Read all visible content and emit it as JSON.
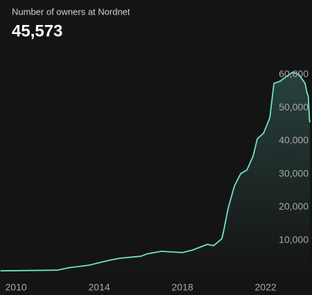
{
  "chart_data": {
    "type": "line",
    "title": "Number of owners at Nordnet",
    "subtitle": "45,573",
    "x": [
      2009.25,
      2012,
      2012.5,
      2013.5,
      2014.5,
      2015,
      2016,
      2016.3,
      2017,
      2018,
      2018.5,
      2019.2,
      2019.5,
      2019.9,
      2020.0,
      2020.2,
      2020.5,
      2020.8,
      2021.1,
      2021.4,
      2021.6,
      2021.9,
      2022.2,
      2022.4,
      2022.7,
      2023.0,
      2023.3,
      2023.6,
      2023.9,
      2024.0,
      2024.05,
      2024.1,
      2024.13
    ],
    "series": [
      {
        "color": "#6fe3cf",
        "values": [
          800,
          1000,
          1700,
          2500,
          4000,
          4600,
          5200,
          5900,
          6700,
          6300,
          7100,
          8800,
          8400,
          10500,
          13400,
          19700,
          26400,
          30100,
          31200,
          35400,
          40600,
          42300,
          46900,
          57300,
          58000,
          59400,
          60700,
          60000,
          57300,
          54200,
          53600,
          47000,
          45573
        ]
      }
    ],
    "xlim": [
      2009.23,
      2024.23
    ],
    "xticks": [
      2010,
      2014,
      2018,
      2022
    ],
    "ylim": [
      0,
      63000
    ],
    "yticks": [
      {
        "value": 10000,
        "label": "10,000"
      },
      {
        "value": 20000,
        "label": "20,000"
      },
      {
        "value": 30000,
        "label": "30,000"
      },
      {
        "value": 40000,
        "label": "40,000"
      },
      {
        "value": 50000,
        "label": "50,000"
      },
      {
        "value": 60000,
        "label": "60,000"
      }
    ],
    "grid": false
  }
}
